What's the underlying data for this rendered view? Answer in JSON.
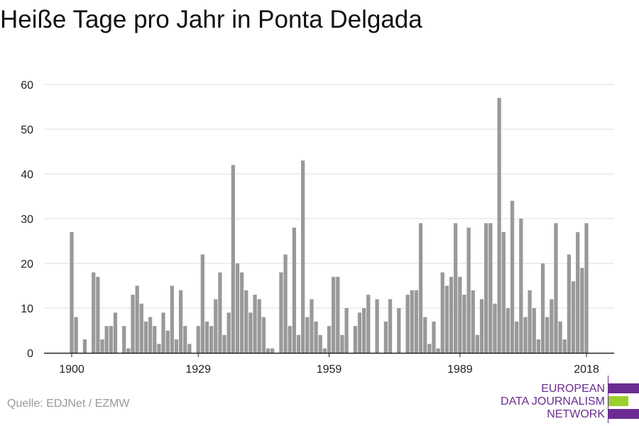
{
  "title": "Heiße Tage pro Jahr in Ponta Delgada",
  "source": "Quelle: EDJNet / EZMW",
  "logo": {
    "lines": [
      "EUROPEAN",
      "DATA JOURNALISM",
      "NETWORK"
    ],
    "colors": {
      "purple": "#6b2c91",
      "green": "#9bcf2e"
    }
  },
  "chart_data": {
    "type": "bar",
    "x_start": 1900,
    "x_end": 2018,
    "x_ticks": [
      1900,
      1929,
      1959,
      1989,
      2018
    ],
    "y_ticks": [
      0,
      10,
      20,
      30,
      40,
      50,
      60
    ],
    "ylim": [
      0,
      60
    ],
    "grid": true,
    "bar_color": "#999999",
    "values": [
      27,
      8,
      0,
      3,
      0,
      18,
      17,
      3,
      6,
      6,
      9,
      0,
      6,
      1,
      13,
      15,
      11,
      7,
      8,
      6,
      2,
      9,
      5,
      15,
      3,
      14,
      6,
      2,
      0,
      6,
      22,
      7,
      6,
      12,
      18,
      4,
      9,
      42,
      20,
      18,
      14,
      9,
      13,
      12,
      8,
      1,
      1,
      0,
      18,
      22,
      6,
      28,
      4,
      43,
      8,
      12,
      7,
      4,
      1,
      6,
      17,
      17,
      4,
      10,
      0,
      6,
      9,
      10,
      13,
      0,
      12,
      0,
      7,
      12,
      0,
      10,
      0,
      13,
      14,
      14,
      29,
      8,
      2,
      7,
      1,
      18,
      15,
      17,
      29,
      17,
      13,
      28,
      14,
      4,
      12,
      29,
      29,
      11,
      57,
      27,
      10,
      34,
      7,
      30,
      8,
      14,
      10,
      3,
      20,
      8,
      12,
      29,
      7,
      3,
      22,
      16,
      27,
      19,
      29
    ]
  }
}
